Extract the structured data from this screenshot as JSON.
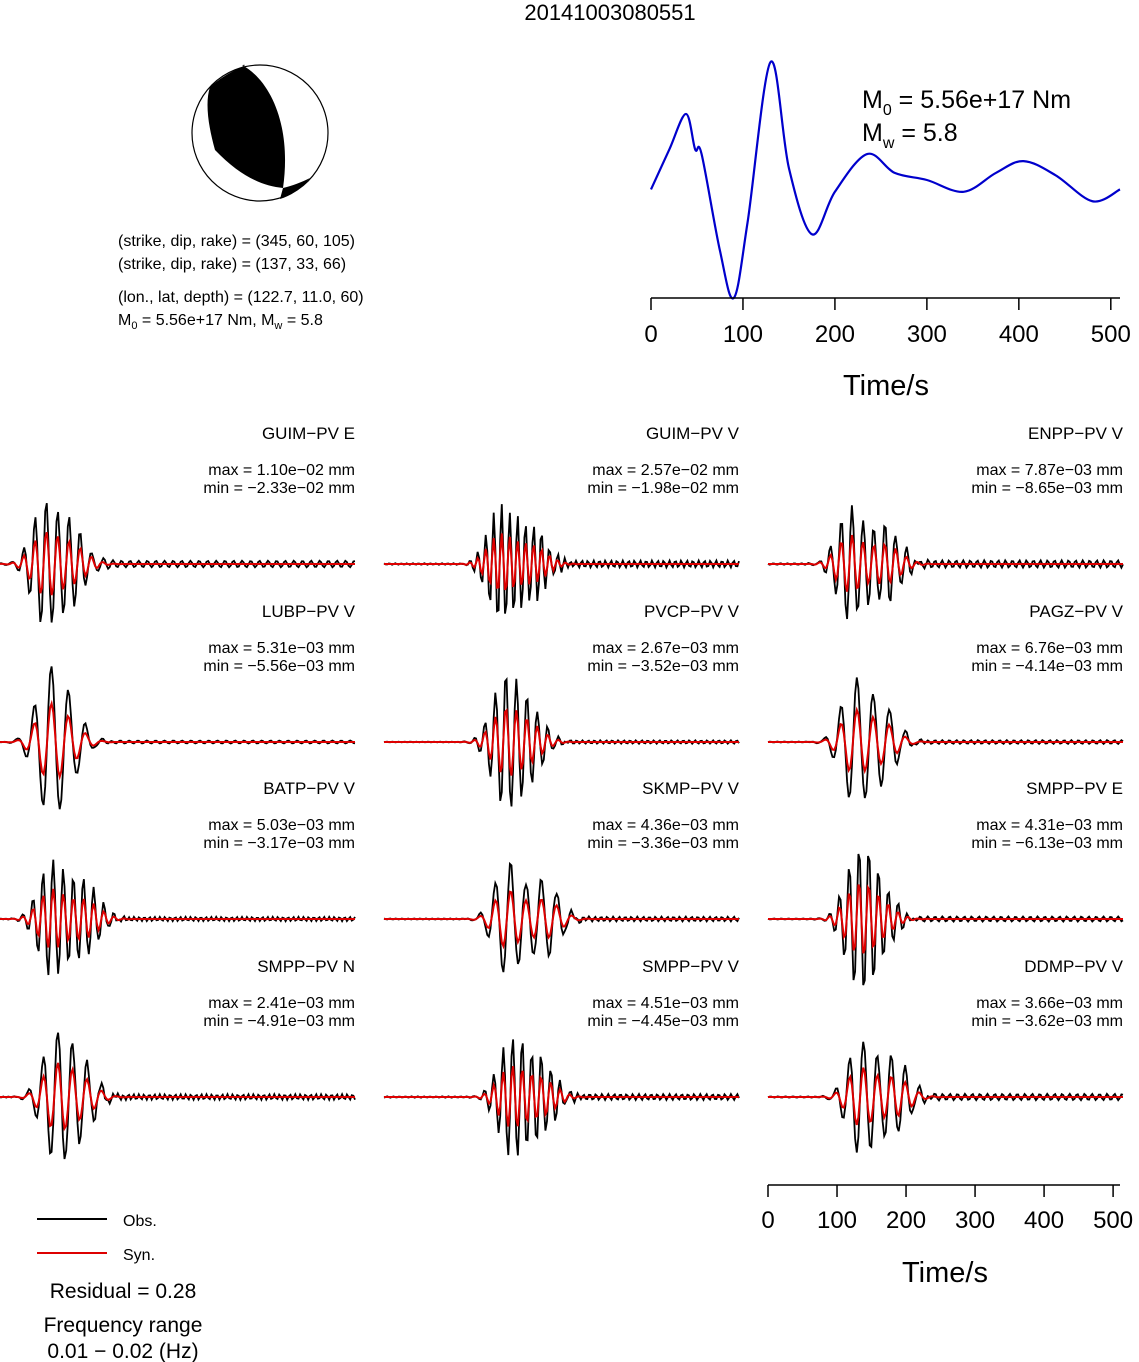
{
  "title": "20141003080551",
  "mechanism": {
    "planes": [
      {
        "strike": 345,
        "dip": 60,
        "rake": 105
      },
      {
        "strike": 137,
        "dip": 33,
        "rake": 66
      }
    ],
    "line1": "(strike, dip, rake) = (345, 60, 105)",
    "line2": "(strike, dip, rake) = (137, 33, 66)",
    "line3": "(lon., lat, depth) = (122.7, 11.0, 60)",
    "m0_text": "M0 = 5.56e+17 Nm, Mw = 5.8",
    "m0_text_parts": [
      "M",
      "0",
      " = 5.56e+17 Nm, M",
      "w",
      " = 5.8"
    ]
  },
  "stf": {
    "m0_label": "M",
    "m0_sub": "0",
    "m0_value": " = 5.56e+17 Nm",
    "mw_label": "M",
    "mw_sub": "w",
    "mw_value": " = 5.8",
    "xlabel": "Time/s",
    "xticks": [
      0,
      100,
      200,
      300,
      400,
      500
    ],
    "xlim": [
      0,
      510
    ],
    "color": "#0000cc"
  },
  "waveform_axis": {
    "xlabel": "Time/s",
    "xticks": [
      0,
      100,
      200,
      300,
      400,
      500
    ],
    "xlim": [
      0,
      510
    ]
  },
  "legend": {
    "obs": "Obs.",
    "syn": "Syn.",
    "obs_color": "#000000",
    "syn_color": "#dd0000"
  },
  "residual": "Residual = 0.28",
  "freq_title": "Frequency range",
  "freq_value": "0.01 − 0.02 (Hz)",
  "stations": [
    {
      "name": "GUIM−PV E",
      "max": "max = 1.10e−02 mm",
      "min": "min = −2.33e−02 mm"
    },
    {
      "name": "GUIM−PV V",
      "max": "max = 2.57e−02 mm",
      "min": "min = −1.98e−02 mm"
    },
    {
      "name": "ENPP−PV V",
      "max": "max = 7.87e−03 mm",
      "min": "min = −8.65e−03 mm"
    },
    {
      "name": "LUBP−PV V",
      "max": "max = 5.31e−03 mm",
      "min": "min = −5.56e−03 mm"
    },
    {
      "name": "PVCP−PV V",
      "max": "max = 2.67e−03 mm",
      "min": "min = −3.52e−03 mm"
    },
    {
      "name": "PAGZ−PV V",
      "max": "max = 6.76e−03 mm",
      "min": "min = −4.14e−03 mm"
    },
    {
      "name": "BATP−PV V",
      "max": "max = 5.03e−03 mm",
      "min": "min = −3.17e−03 mm"
    },
    {
      "name": "SKMP−PV V",
      "max": "max = 4.36e−03 mm",
      "min": "min = −3.36e−03 mm"
    },
    {
      "name": "SMPP−PV E",
      "max": "max = 4.31e−03 mm",
      "min": "min = −6.13e−03 mm"
    },
    {
      "name": "SMPP−PV N",
      "max": "max = 2.41e−03 mm",
      "min": "min = −4.91e−03 mm"
    },
    {
      "name": "SMPP−PV V",
      "max": "max = 4.51e−03 mm",
      "min": "min = −4.45e−03 mm"
    },
    {
      "name": "DDMP−PV V",
      "max": "max = 3.66e−03 mm",
      "min": "min = −3.62e−03 mm"
    }
  ],
  "chart_data": [
    {
      "type": "line",
      "title": "",
      "xlabel": "Time/s",
      "ylabel": "",
      "xlim": [
        0,
        510
      ],
      "series": [
        {
          "color": "#0000cc",
          "x": [
            0,
            20,
            38,
            48,
            55,
            75,
            90,
            105,
            130,
            150,
            175,
            200,
            235,
            265,
            300,
            340,
            375,
            405,
            440,
            480,
            510
          ],
          "y": [
            0.46,
            0.63,
            0.78,
            0.63,
            0.61,
            0.2,
            0.0,
            0.32,
            1.0,
            0.55,
            0.27,
            0.45,
            0.61,
            0.53,
            0.5,
            0.45,
            0.53,
            0.58,
            0.52,
            0.41,
            0.46
          ]
        }
      ]
    },
    {
      "type": "line",
      "title": "",
      "xlabel": "Time/s",
      "ylabel": "",
      "xlim": [
        0,
        510
      ],
      "series": [
        {
          "name": "Obs.",
          "color": "#000000"
        },
        {
          "name": "Syn.",
          "color": "#dd0000"
        }
      ]
    }
  ]
}
